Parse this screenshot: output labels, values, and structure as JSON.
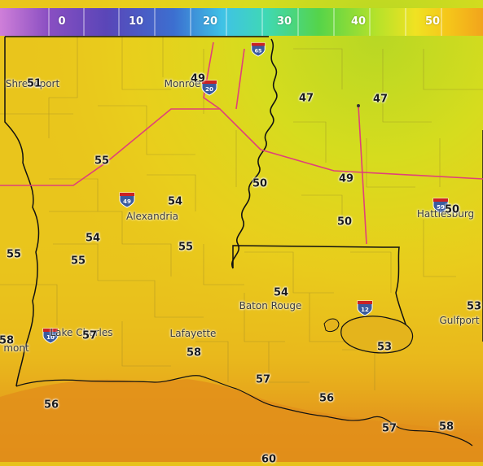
{
  "colorbar": {
    "ticks": [
      "0",
      "10",
      "20",
      "30",
      "40",
      "50"
    ],
    "gradient": [
      "#cf7fd9",
      "#8a4fc2",
      "#5a46b8",
      "#3c6fd0",
      "#3fc2e6",
      "#3fd8b5",
      "#55d44a",
      "#b6e22a",
      "#f0e222",
      "#f5c51a",
      "#f2a41c"
    ]
  },
  "cities": {
    "shreveport": "Shreveport",
    "monroe": "Monroe",
    "alexandria": "Alexandria",
    "baton_rouge": "Baton Rouge",
    "lake_charles": "Lake Charles",
    "lafayette": "Lafayette",
    "hattiesburg": "Hattiesburg",
    "gulfport": "Gulfport",
    "beaumont": "mont"
  },
  "temperatures": {
    "shreveport": "51",
    "monroe": "49",
    "ms_north_w": "47",
    "ms_north_e": "47",
    "n_central_la": "55",
    "ms_delta": "50",
    "ms_central": "49",
    "hattiesburg": "50",
    "alexandria": "54",
    "ms_southwest": "50",
    "west_la_a": "54",
    "west_la_b": "55",
    "central_la": "55",
    "sabine": "55",
    "baton_rouge": "54",
    "gulfport": "53",
    "lake_charles": "58",
    "lake_charles_e": "57",
    "lafayette": "58",
    "north_shore": "53",
    "coast_w": "57",
    "coast_c": "56",
    "gulf_w": "56",
    "delta_e": "57",
    "delta_se": "58",
    "gulf_s": "60"
  },
  "highways": {
    "i20": "20",
    "i49": "49",
    "i12": "12",
    "i10": "10",
    "i65": "65",
    "i59": "59"
  },
  "colors": {
    "land_base": "#e9c51c",
    "state_border": "#111111",
    "highway": "#e0407a",
    "county_line": "#8a7a2a",
    "gulf_warm": "#e6921a"
  }
}
